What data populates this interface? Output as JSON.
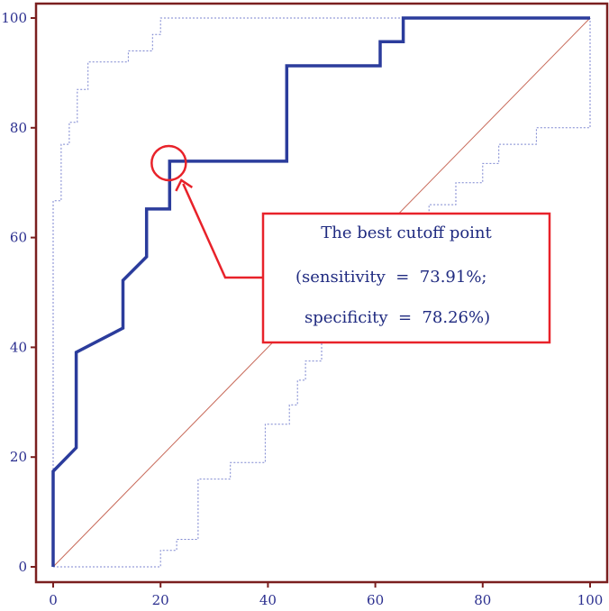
{
  "chart_data": {
    "type": "line",
    "title": "",
    "xlabel": "",
    "ylabel": "",
    "xlim": [
      0,
      100
    ],
    "ylim": [
      0,
      100
    ],
    "x_ticks": [
      "0",
      "20",
      "40",
      "60",
      "80",
      "100"
    ],
    "y_ticks": [
      "0",
      "20",
      "40",
      "60",
      "80",
      "100"
    ],
    "grid": false,
    "colors": {
      "frame": "#7a1f1f",
      "roc": "#2b3c9c",
      "ci": "#7c86d0",
      "reference": "#c86a5a",
      "annotation": "#e8222a",
      "tick_text": "#2b2f8f"
    },
    "series": [
      {
        "role": "roc-curve",
        "x": [
          0,
          0,
          4.3,
          4.3,
          13,
          13,
          17.4,
          17.4,
          21.7,
          21.7,
          43.5,
          43.5,
          60.9,
          60.9,
          65.2,
          65.2,
          82.6,
          82.6,
          100
        ],
        "y": [
          0,
          17.4,
          21.7,
          39.1,
          43.5,
          52.2,
          56.5,
          65.2,
          65.2,
          73.9,
          73.9,
          91.3,
          91.3,
          95.7,
          95.7,
          100,
          100,
          100,
          100
        ]
      },
      {
        "role": "upper-confidence-bound",
        "x": [
          0,
          0,
          1.5,
          1.5,
          3,
          3,
          4.5,
          4.5,
          6.5,
          6.5,
          14,
          14,
          18.5,
          18.5,
          20,
          20,
          80
        ],
        "y": [
          0,
          66.7,
          66.7,
          77,
          77,
          81,
          81,
          87,
          87,
          92,
          92,
          94,
          94,
          97,
          97,
          100,
          100
        ]
      },
      {
        "role": "lower-confidence-bound",
        "x": [
          0,
          20,
          20,
          23,
          23,
          27,
          27,
          33,
          33,
          39.5,
          39.5,
          44,
          44,
          45.5,
          45.5,
          47,
          47,
          50,
          50,
          56,
          56,
          62,
          62,
          70,
          70,
          75,
          75,
          80,
          80,
          83,
          83,
          90,
          90,
          94,
          94,
          97,
          97,
          100,
          100
        ],
        "y": [
          0,
          0,
          3,
          3,
          5,
          5,
          16,
          16,
          19,
          19,
          26,
          26,
          29.5,
          29.5,
          34,
          34,
          37.5,
          37.5,
          44,
          44,
          54,
          54,
          63,
          63,
          66,
          66,
          70,
          70,
          73.5,
          73.5,
          77,
          77,
          80,
          80,
          80,
          80,
          80,
          80,
          100
        ]
      },
      {
        "role": "reference-diagonal",
        "x": [
          0,
          100
        ],
        "y": [
          0,
          100
        ]
      }
    ],
    "annotation": {
      "point": {
        "x": 21.7,
        "y": 73.9
      },
      "lines": [
        "The best cutoff point",
        "(sensitivity  =  73.91%;",
        "specificity  =  78.26%)"
      ]
    }
  }
}
